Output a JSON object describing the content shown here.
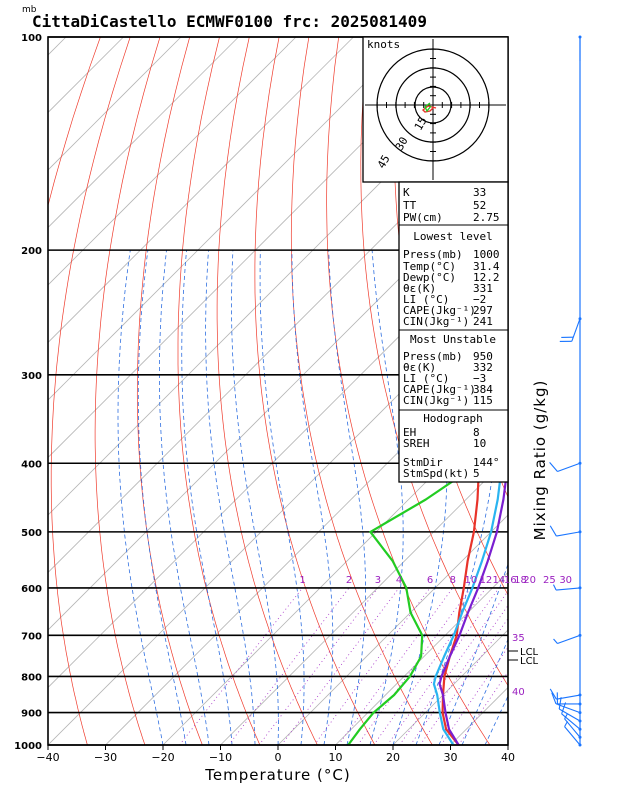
{
  "header": {
    "unit_mb": "mb",
    "title": "CittaDiCastello ECMWF0100 frc: 2025081409"
  },
  "chart_data": {
    "type": "skew-t",
    "xlabel": "Temperature (°C)",
    "ylabel": "Mixing Ratio (g/kg)",
    "xlim": [
      -40,
      40
    ],
    "ylim": [
      1000,
      100
    ],
    "x_ticks": [
      "−40",
      "−30",
      "−20",
      "−10",
      "0",
      "10",
      "20",
      "30",
      "40"
    ],
    "pressure_ticks": [
      "100",
      "200",
      "300",
      "400",
      "500",
      "600",
      "700",
      "800",
      "900",
      "1000"
    ],
    "mixing_ratio_labels": [
      "1",
      "2",
      "3",
      "4",
      "6",
      "8",
      "10",
      "12",
      "14",
      "16",
      "18",
      "20",
      "25",
      "30"
    ],
    "dry_adiabat_labels": [
      "35",
      "40"
    ],
    "lcl_labels": [
      "LCL",
      "LCL"
    ],
    "series": [
      {
        "role": "temperature",
        "color": "#e8332a",
        "points": [
          [
            1000,
            31.4
          ],
          [
            950,
            26.5
          ],
          [
            900,
            23
          ],
          [
            850,
            20
          ],
          [
            800,
            17
          ],
          [
            750,
            14.5
          ],
          [
            700,
            12
          ],
          [
            650,
            8.5
          ],
          [
            600,
            5
          ],
          [
            550,
            1
          ],
          [
            500,
            -3
          ],
          [
            450,
            -8
          ],
          [
            400,
            -14
          ],
          [
            350,
            -21
          ],
          [
            300,
            -29
          ],
          [
            250,
            -39
          ],
          [
            240,
            -40
          ],
          [
            200,
            -45
          ],
          [
            150,
            -53
          ],
          [
            100,
            -58
          ]
        ]
      },
      {
        "role": "dewpoint",
        "color": "#22cc22",
        "points": [
          [
            1000,
            12.2
          ],
          [
            950,
            11.5
          ],
          [
            900,
            11
          ],
          [
            850,
            11.5
          ],
          [
            800,
            11
          ],
          [
            750,
            9.5
          ],
          [
            700,
            6
          ],
          [
            650,
            0
          ],
          [
            600,
            -5
          ],
          [
            550,
            -12
          ],
          [
            500,
            -21
          ],
          [
            450,
            -17
          ],
          [
            400,
            -14
          ],
          [
            350,
            -23
          ],
          [
            300,
            -34
          ],
          [
            250,
            -51
          ],
          [
            200,
            -60
          ],
          [
            150,
            -73
          ],
          [
            100,
            -82
          ]
        ]
      },
      {
        "role": "parcel",
        "color": "#7a1fd0",
        "points": [
          [
            1000,
            31.4
          ],
          [
            950,
            27
          ],
          [
            900,
            23.5
          ],
          [
            850,
            20
          ],
          [
            820,
            17.5
          ],
          [
            800,
            16.5
          ],
          [
            750,
            14.5
          ],
          [
            700,
            12.5
          ],
          [
            650,
            10
          ],
          [
            600,
            7.5
          ],
          [
            550,
            4.5
          ],
          [
            500,
            1
          ],
          [
            450,
            -3.5
          ],
          [
            400,
            -9
          ],
          [
            350,
            -16
          ],
          [
            300,
            -25
          ],
          [
            250,
            -37
          ],
          [
            200,
            -52
          ],
          [
            150,
            -70
          ],
          [
            120,
            -80
          ]
        ]
      },
      {
        "role": "virtual-parcel",
        "color": "#2ab4f0",
        "points": [
          [
            1000,
            30.5
          ],
          [
            950,
            26
          ],
          [
            900,
            22.5
          ],
          [
            850,
            19
          ],
          [
            820,
            16.5
          ],
          [
            800,
            15.5
          ],
          [
            750,
            13.5
          ],
          [
            700,
            11.5
          ],
          [
            650,
            9
          ],
          [
            600,
            6.5
          ],
          [
            550,
            3.5
          ],
          [
            500,
            0
          ],
          [
            450,
            -4.5
          ],
          [
            400,
            -10
          ],
          [
            350,
            -17
          ],
          [
            300,
            -26
          ],
          [
            250,
            -38
          ],
          [
            200,
            -53
          ],
          [
            150,
            -71
          ],
          [
            120,
            -81
          ]
        ]
      }
    ],
    "winds": [
      {
        "p": 100,
        "dir": 180,
        "spd": 2
      },
      {
        "p": 250,
        "dir": 200,
        "spd": 20
      },
      {
        "p": 400,
        "dir": 250,
        "spd": 10
      },
      {
        "p": 500,
        "dir": 260,
        "spd": 10
      },
      {
        "p": 600,
        "dir": 265,
        "spd": 8
      },
      {
        "p": 700,
        "dir": 250,
        "spd": 8
      },
      {
        "p": 850,
        "dir": 260,
        "spd": 10
      },
      {
        "p": 875,
        "dir": 270,
        "spd": 10
      },
      {
        "p": 900,
        "dir": 290,
        "spd": 10
      },
      {
        "p": 925,
        "dir": 300,
        "spd": 10
      },
      {
        "p": 950,
        "dir": 310,
        "spd": 10
      },
      {
        "p": 975,
        "dir": 320,
        "spd": 8
      },
      {
        "p": 1000,
        "dir": 320,
        "spd": 5
      }
    ]
  },
  "hodograph": {
    "unit": "knots",
    "ring_labels": [
      "15",
      "30",
      "45"
    ]
  },
  "indices": {
    "k_label": "K",
    "k_value": "33",
    "tt_label": "TT",
    "tt_value": "52",
    "pw_label": "PW(cm)",
    "pw_value": "2.75"
  },
  "lowest_level": {
    "heading": "Lowest level",
    "press_label": "Press(mb)",
    "press_value": "1000",
    "temp_label": "Temp(°C)",
    "temp_value": "31.4",
    "dewp_label": "Dewp(°C)",
    "dewp_value": "12.2",
    "theta_label": "θε(K)",
    "theta_value": "331",
    "li_label": "LI  (°C)",
    "li_value": "−2",
    "cape_label": "CAPE(Jkg⁻¹)",
    "cape_value": "297",
    "cin_label": "CIN(Jkg⁻¹)",
    "cin_value": "241"
  },
  "most_unstable": {
    "heading": "Most Unstable",
    "press_label": "Press(mb)",
    "press_value": "950",
    "theta_label": "θε(K)",
    "theta_value": "332",
    "li_label": "LI  (°C)",
    "li_value": "−3",
    "cape_label": "CAPE(Jkg⁻¹)",
    "cape_value": "384",
    "cin_label": "CIN(Jkg⁻¹)",
    "cin_value": "115"
  },
  "hodograph_params": {
    "heading": "Hodograph",
    "eh_label": "EH",
    "eh_value": "8",
    "sreh_label": "SREH",
    "sreh_value": "10",
    "stmdir_label": "StmDir",
    "stmdir_value": "144°",
    "stmspd_label": "StmSpd(kt)",
    "stmspd_value": "5"
  }
}
